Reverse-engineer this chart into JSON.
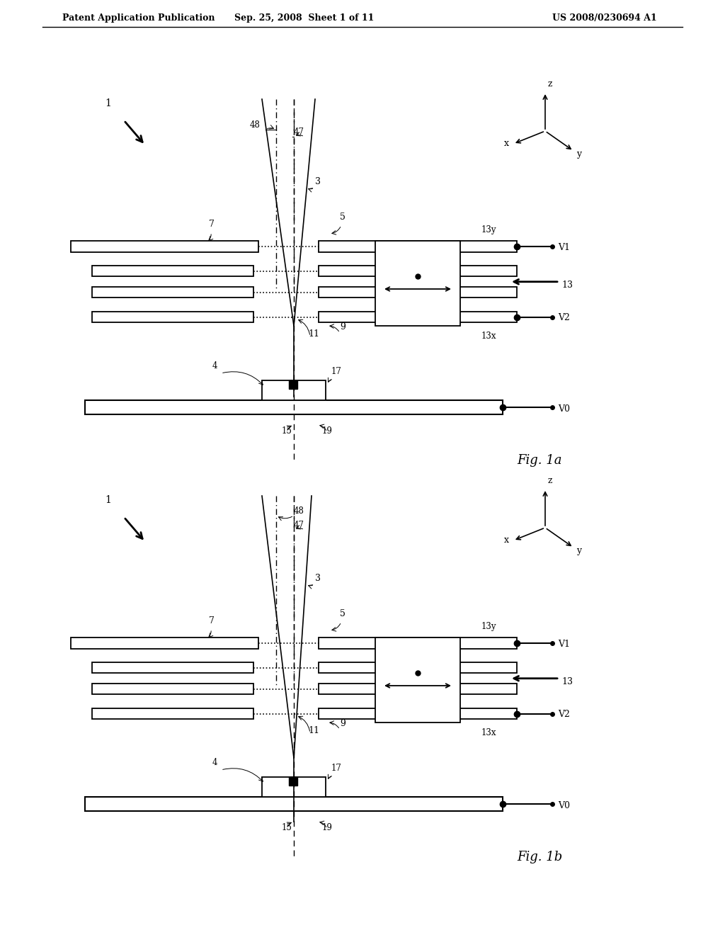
{
  "bg_color": "#ffffff",
  "header_left": "Patent Application Publication",
  "header_mid": "Sep. 25, 2008  Sheet 1 of 11",
  "header_right": "US 2008/0230694 A1",
  "fig1a_label": "Fig. 1a",
  "fig1b_label": "Fig. 1b",
  "fig_width": 10.24,
  "fig_height": 13.2
}
